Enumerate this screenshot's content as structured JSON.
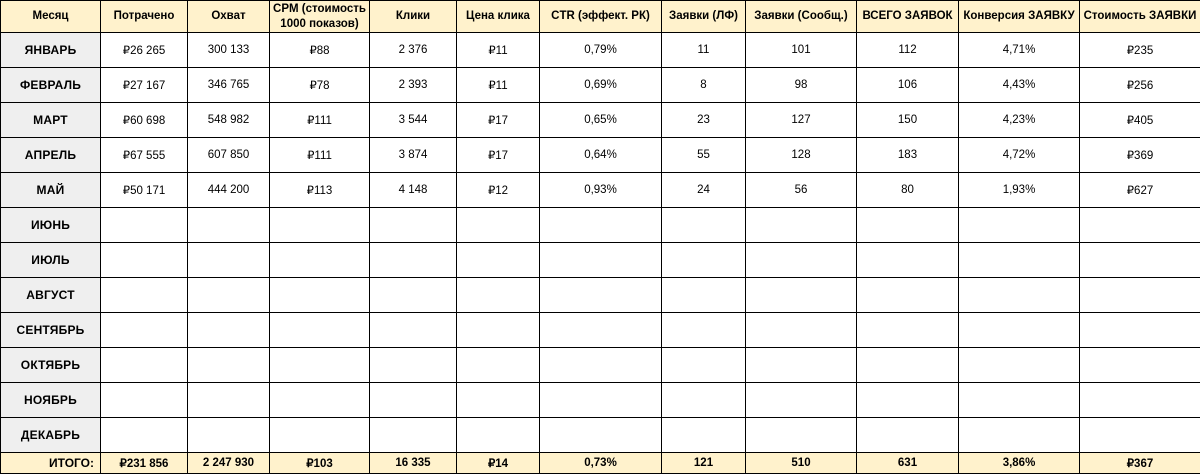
{
  "colors": {
    "header_bg": "#fff2cc",
    "month_col_bg": "#efefef",
    "total_bg": "#fff2cc",
    "cell_bg": "#ffffff",
    "border": "#000000"
  },
  "table": {
    "columns": [
      "Месяц",
      "Потрачено",
      "Охват",
      "CPM (стоимость 1000 показов)",
      "Клики",
      "Цена клика",
      "CTR (эффект. РК)",
      "Заявки (ЛФ)",
      "Заявки (Сообщ.)",
      "ВСЕГО ЗАЯВОК",
      "Конверсия ЗАЯВКУ",
      "Стоимость ЗАЯВКИ"
    ],
    "rows": [
      {
        "month": "ЯНВАРЬ",
        "values": [
          "₽26 265",
          "300 133",
          "₽88",
          "2 376",
          "₽11",
          "0,79%",
          "11",
          "101",
          "112",
          "4,71%",
          "₽235"
        ]
      },
      {
        "month": "ФЕВРАЛЬ",
        "values": [
          "₽27 167",
          "346 765",
          "₽78",
          "2 393",
          "₽11",
          "0,69%",
          "8",
          "98",
          "106",
          "4,43%",
          "₽256"
        ]
      },
      {
        "month": "МАРТ",
        "values": [
          "₽60 698",
          "548 982",
          "₽111",
          "3 544",
          "₽17",
          "0,65%",
          "23",
          "127",
          "150",
          "4,23%",
          "₽405"
        ]
      },
      {
        "month": "АПРЕЛЬ",
        "values": [
          "₽67 555",
          "607 850",
          "₽111",
          "3 874",
          "₽17",
          "0,64%",
          "55",
          "128",
          "183",
          "4,72%",
          "₽369"
        ]
      },
      {
        "month": "МАЙ",
        "values": [
          "₽50 171",
          "444 200",
          "₽113",
          "4 148",
          "₽12",
          "0,93%",
          "24",
          "56",
          "80",
          "1,93%",
          "₽627"
        ]
      },
      {
        "month": "ИЮНЬ",
        "values": [
          "",
          "",
          "",
          "",
          "",
          "",
          "",
          "",
          "",
          "",
          ""
        ]
      },
      {
        "month": "ИЮЛЬ",
        "values": [
          "",
          "",
          "",
          "",
          "",
          "",
          "",
          "",
          "",
          "",
          ""
        ]
      },
      {
        "month": "АВГУСТ",
        "values": [
          "",
          "",
          "",
          "",
          "",
          "",
          "",
          "",
          "",
          "",
          ""
        ]
      },
      {
        "month": "СЕНТЯБРЬ",
        "values": [
          "",
          "",
          "",
          "",
          "",
          "",
          "",
          "",
          "",
          "",
          ""
        ]
      },
      {
        "month": "ОКТЯБРЬ",
        "values": [
          "",
          "",
          "",
          "",
          "",
          "",
          "",
          "",
          "",
          "",
          ""
        ]
      },
      {
        "month": "НОЯБРЬ",
        "values": [
          "",
          "",
          "",
          "",
          "",
          "",
          "",
          "",
          "",
          "",
          ""
        ]
      },
      {
        "month": "ДЕКАБРЬ",
        "values": [
          "",
          "",
          "",
          "",
          "",
          "",
          "",
          "",
          "",
          "",
          ""
        ]
      }
    ],
    "total": {
      "label": "ИТОГО:",
      "values": [
        "₽231 856",
        "2 247 930",
        "₽103",
        "16 335",
        "₽14",
        "0,73%",
        "121",
        "510",
        "631",
        "3,86%",
        "₽367"
      ]
    }
  }
}
